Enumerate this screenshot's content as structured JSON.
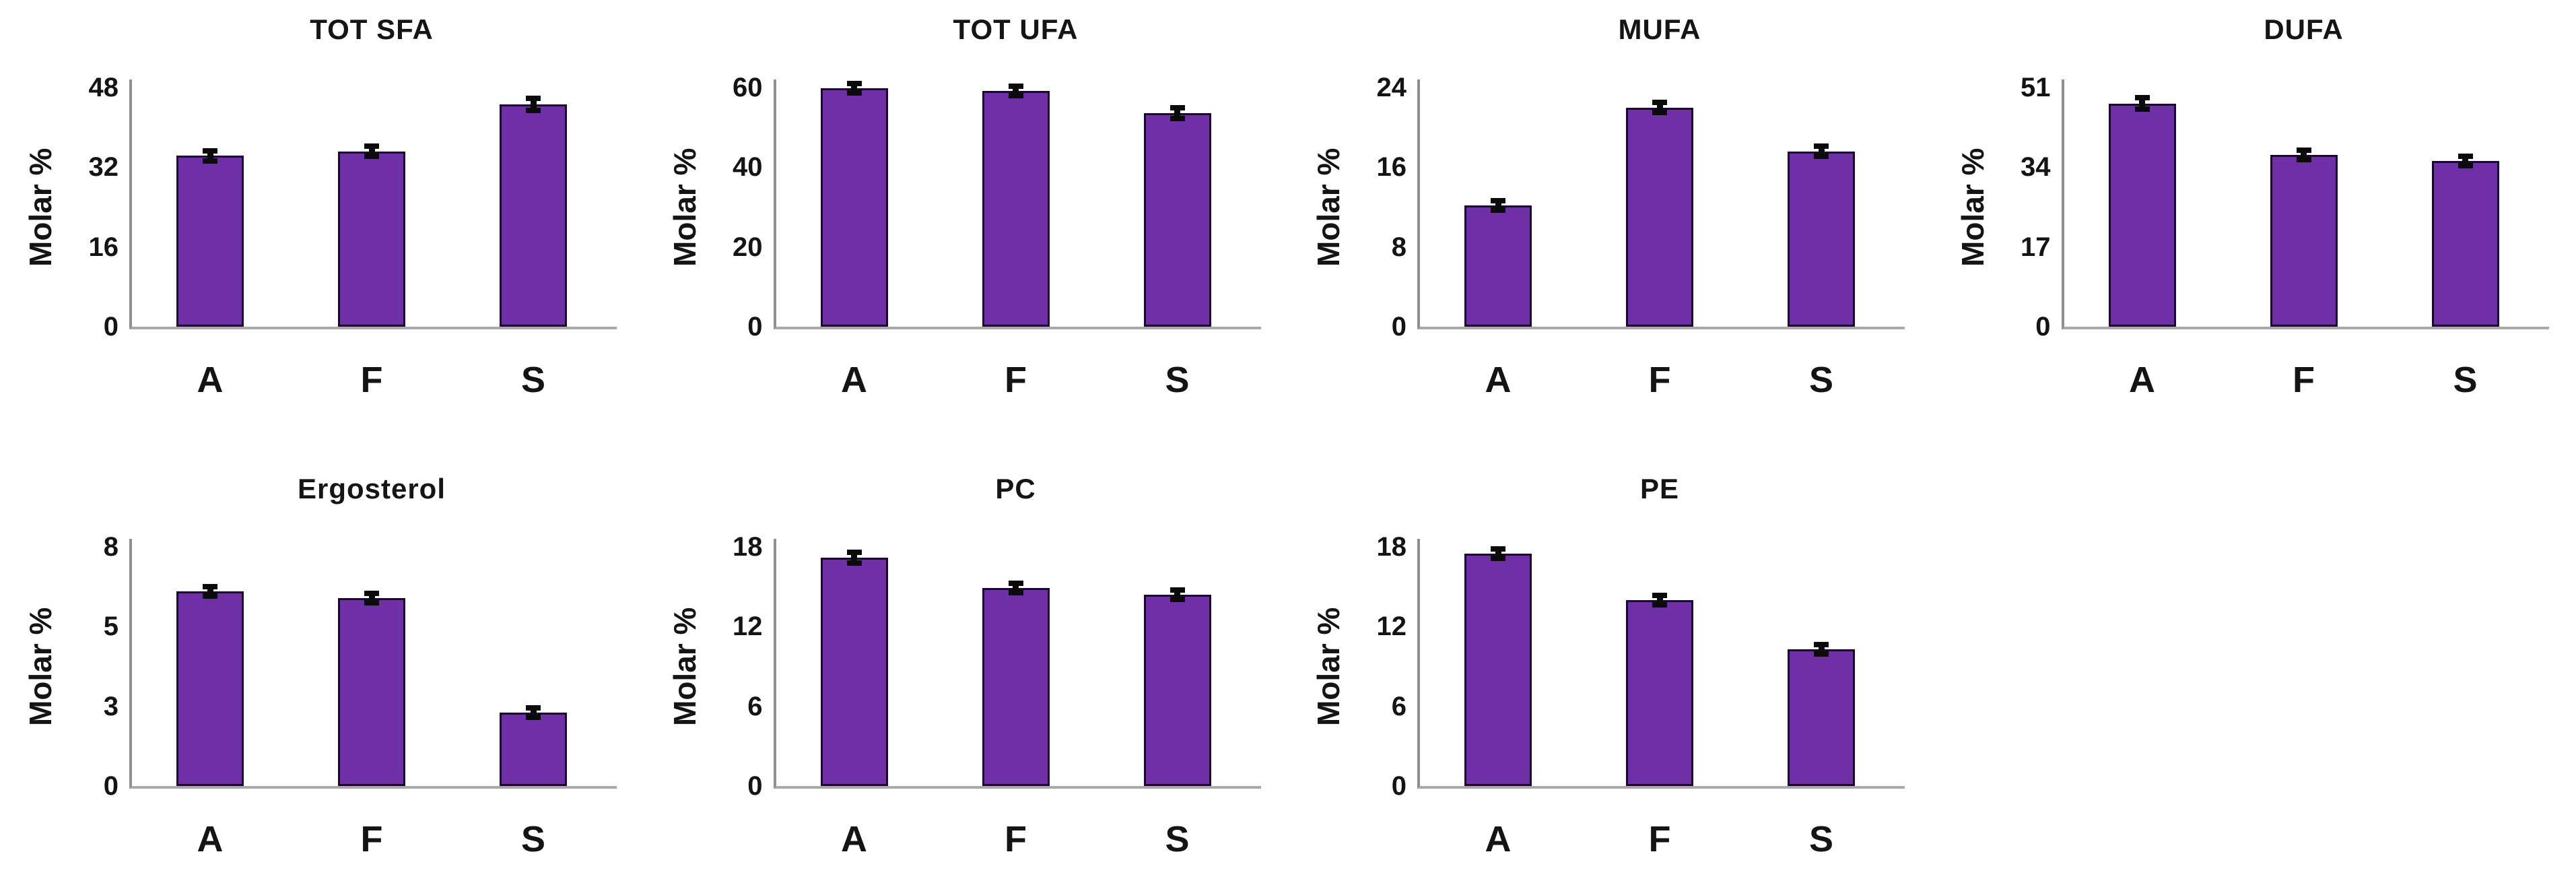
{
  "figure": {
    "background_color": "#ffffff",
    "bar_fill_color": "#6F2FA6",
    "bar_border_color": "#1C0630",
    "error_bar_color": "#0b0b0b",
    "y_axis_color": "#8f8f8f",
    "x_axis_color": "#a9a9a9",
    "text_color": "#141414",
    "shared_ylabel": "Molar %",
    "shared_categories": [
      "A",
      "F",
      "S"
    ]
  },
  "chart_data": [
    {
      "type": "bar",
      "title": "TOT SFA",
      "ylabel": "Molar %",
      "categories": [
        "A",
        "F",
        "S"
      ],
      "values": [
        34.3,
        35.2,
        44.6
      ],
      "errors": [
        1.0,
        1.0,
        1.2
      ],
      "ylim": [
        0,
        48
      ],
      "yticks": [
        0,
        16,
        32,
        48
      ],
      "ytick_labels": [
        "0",
        "16",
        "32",
        "48"
      ],
      "grid": false,
      "legend": "none",
      "row": 1,
      "col": 1
    },
    {
      "type": "bar",
      "title": "TOT UFA",
      "ylabel": "Molar %",
      "categories": [
        "A",
        "F",
        "S"
      ],
      "values": [
        59.9,
        59.2,
        53.6
      ],
      "errors": [
        0.7,
        1.0,
        1.4
      ],
      "ylim": [
        0,
        60
      ],
      "yticks": [
        0,
        20,
        40,
        60
      ],
      "ytick_labels": [
        "0",
        "20",
        "40",
        "60"
      ],
      "grid": false,
      "legend": "none",
      "row": 1,
      "col": 2
    },
    {
      "type": "bar",
      "title": "MUFA",
      "ylabel": "Molar %",
      "categories": [
        "A",
        "F",
        "S"
      ],
      "values": [
        12.2,
        22.0,
        17.6
      ],
      "errors": [
        0.4,
        0.5,
        0.5
      ],
      "ylim": [
        0,
        24
      ],
      "yticks": [
        0,
        8,
        16,
        24
      ],
      "ytick_labels": [
        "0",
        "8",
        "16",
        "24"
      ],
      "grid": false,
      "legend": "none",
      "row": 1,
      "col": 3
    },
    {
      "type": "bar",
      "title": "DUFA",
      "ylabel": "Molar %",
      "categories": [
        "A",
        "F",
        "S"
      ],
      "values": [
        47.6,
        36.7,
        35.3
      ],
      "errors": [
        1.2,
        1.0,
        0.9
      ],
      "ylim": [
        0,
        51
      ],
      "yticks": [
        0,
        17,
        34,
        51
      ],
      "ytick_labels": [
        "0",
        "17",
        "34",
        "51"
      ],
      "grid": false,
      "legend": "none",
      "row": 1,
      "col": 4
    },
    {
      "type": "bar",
      "title": "Ergosterol",
      "ylabel": "Molar %",
      "categories": [
        "A",
        "F",
        "S"
      ],
      "values": [
        6.1,
        5.9,
        2.3
      ],
      "errors": [
        0.15,
        0.13,
        0.1
      ],
      "ylim": [
        0,
        7.5
      ],
      "yticks": [
        0,
        2.5,
        5,
        7.5
      ],
      "ytick_labels": [
        "0",
        "3",
        "5",
        "8"
      ],
      "grid": false,
      "legend": "none",
      "row": 2,
      "col": 1
    },
    {
      "type": "bar",
      "title": "PC",
      "ylabel": "Molar %",
      "categories": [
        "A",
        "F",
        "S"
      ],
      "values": [
        17.2,
        14.9,
        14.4
      ],
      "errors": [
        0.4,
        0.35,
        0.3
      ],
      "ylim": [
        0,
        18
      ],
      "yticks": [
        0,
        6,
        12,
        18
      ],
      "ytick_labels": [
        "0",
        "6",
        "12",
        "18"
      ],
      "grid": false,
      "legend": "none",
      "row": 2,
      "col": 2
    },
    {
      "type": "bar",
      "title": "PE",
      "ylabel": "Molar %",
      "categories": [
        "A",
        "F",
        "S"
      ],
      "values": [
        17.5,
        14.0,
        10.3
      ],
      "errors": [
        0.35,
        0.35,
        0.3
      ],
      "ylim": [
        0,
        18
      ],
      "yticks": [
        0,
        6,
        12,
        18
      ],
      "ytick_labels": [
        "0",
        "6",
        "12",
        "18"
      ],
      "grid": false,
      "legend": "none",
      "row": 2,
      "col": 3
    }
  ]
}
